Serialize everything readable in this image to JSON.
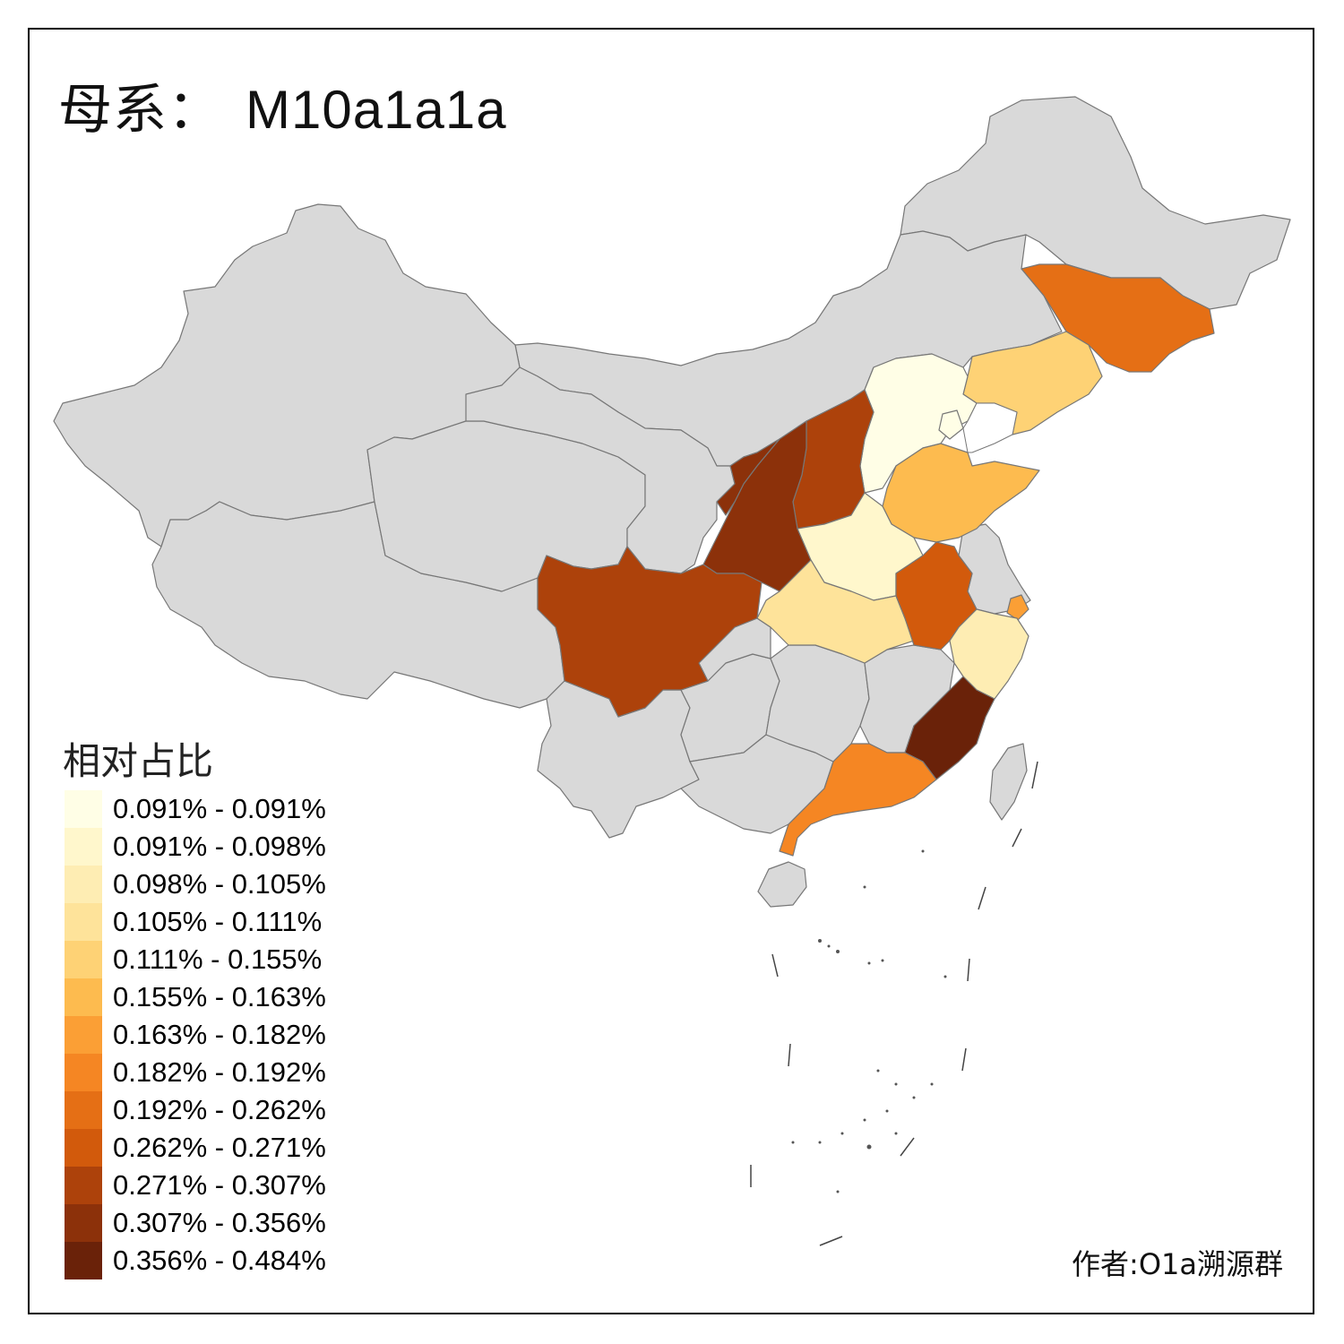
{
  "title": {
    "prefix": "母系：",
    "haplogroup": "M10a1a1a"
  },
  "legend": {
    "title": "相对占比",
    "bins": [
      {
        "label": "0.091% - 0.091%",
        "color": "#fffee6"
      },
      {
        "label": "0.091% - 0.098%",
        "color": "#fff7cc"
      },
      {
        "label": "0.098% - 0.105%",
        "color": "#feedb3"
      },
      {
        "label": "0.105% - 0.111%",
        "color": "#fee39a"
      },
      {
        "label": "0.111% - 0.155%",
        "color": "#fed275"
      },
      {
        "label": "0.155% - 0.163%",
        "color": "#fdbb4f"
      },
      {
        "label": "0.163% - 0.182%",
        "color": "#fb9f35"
      },
      {
        "label": "0.182% - 0.192%",
        "color": "#f58623"
      },
      {
        "label": "0.192% - 0.262%",
        "color": "#e56f15"
      },
      {
        "label": "0.262% - 0.271%",
        "color": "#d25a0c"
      },
      {
        "label": "0.271% - 0.307%",
        "color": "#ad420b"
      },
      {
        "label": "0.307% - 0.356%",
        "color": "#8c310a"
      },
      {
        "label": "0.356% - 0.484%",
        "color": "#6a2209"
      }
    ]
  },
  "credit": "作者:O1a溯源群",
  "map": {
    "no_data_color": "#d9d9d9",
    "province_bins": {
      "jilin": 8,
      "liaoning": 4,
      "beijing": 4,
      "hebei": 0,
      "tianjin": 0,
      "shanxi": 10,
      "shaanxi": 11,
      "ningxia": 11,
      "shandong": 5,
      "henan": 1,
      "hubei": 3,
      "anhui": 9,
      "shanghai": 6,
      "zhejiang": 2,
      "fujian": 12,
      "guangdong": 7,
      "sichuan": 10
    }
  }
}
